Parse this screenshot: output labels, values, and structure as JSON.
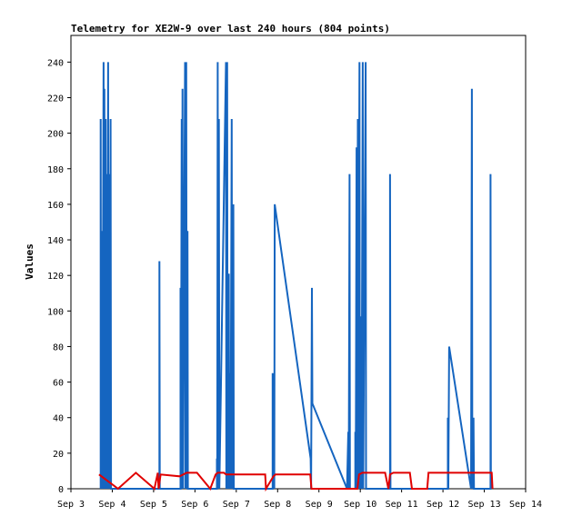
{
  "chart_data": {
    "type": "line",
    "title": "Telemetry for XE2W-9 over last 240 hours (804 points)",
    "xlabel": "",
    "ylabel": "Values",
    "ylim": [
      0,
      255
    ],
    "x_ticks": [
      "Sep 3",
      "Sep 4",
      "Sep 5",
      "Sep 6",
      "Sep 7",
      "Sep 8",
      "Sep 9",
      "Sep 10",
      "Sep 11",
      "Sep 12",
      "Sep 13",
      "Sep 14"
    ],
    "y_ticks": [
      0,
      20,
      40,
      60,
      80,
      100,
      120,
      140,
      160,
      180,
      200,
      220,
      240
    ],
    "grid": false,
    "colors": {
      "series_blue": "#1565c0",
      "series_red": "#e00000",
      "axis": "#000000"
    },
    "series": [
      {
        "name": "",
        "color": "#1565c0",
        "points": [
          [
            3.72,
            0
          ],
          [
            3.72,
            208
          ],
          [
            3.73,
            0
          ],
          [
            3.75,
            145
          ],
          [
            3.76,
            0
          ],
          [
            3.79,
            240
          ],
          [
            3.8,
            0
          ],
          [
            3.81,
            225
          ],
          [
            3.82,
            0
          ],
          [
            3.84,
            208
          ],
          [
            3.85,
            0
          ],
          [
            3.87,
            177
          ],
          [
            3.88,
            0
          ],
          [
            3.9,
            240
          ],
          [
            3.91,
            0
          ],
          [
            3.93,
            177
          ],
          [
            3.94,
            0
          ],
          [
            3.96,
            208
          ],
          [
            3.97,
            0
          ],
          [
            5.14,
            0
          ],
          [
            5.14,
            128
          ],
          [
            5.15,
            0
          ],
          [
            5.65,
            0
          ],
          [
            5.65,
            113
          ],
          [
            5.66,
            0
          ],
          [
            5.68,
            208
          ],
          [
            5.69,
            0
          ],
          [
            5.7,
            225
          ],
          [
            5.71,
            0
          ],
          [
            5.76,
            240
          ],
          [
            5.77,
            0
          ],
          [
            5.79,
            240
          ],
          [
            5.8,
            0
          ],
          [
            5.82,
            145
          ],
          [
            5.83,
            0
          ],
          [
            6.53,
            0
          ],
          [
            6.53,
            17
          ],
          [
            6.54,
            0
          ],
          [
            6.55,
            240
          ],
          [
            6.56,
            0
          ],
          [
            6.58,
            208
          ],
          [
            6.59,
            0
          ],
          [
            6.75,
            240
          ],
          [
            6.76,
            0
          ],
          [
            6.78,
            240
          ],
          [
            6.79,
            0
          ],
          [
            6.82,
            121
          ],
          [
            6.83,
            0
          ],
          [
            6.85,
            65
          ],
          [
            6.86,
            0
          ],
          [
            6.89,
            208
          ],
          [
            6.9,
            0
          ],
          [
            6.93,
            160
          ],
          [
            6.94,
            0
          ],
          [
            7.88,
            0
          ],
          [
            7.88,
            65
          ],
          [
            7.89,
            0
          ],
          [
            7.91,
            32
          ],
          [
            7.92,
            0
          ],
          [
            7.93,
            160
          ],
          [
            8.8,
            17
          ],
          [
            8.81,
            0
          ],
          [
            8.83,
            113
          ],
          [
            8.84,
            48
          ],
          [
            9.68,
            0
          ],
          [
            9.71,
            32
          ],
          [
            9.72,
            0
          ],
          [
            9.74,
            177
          ],
          [
            9.75,
            0
          ],
          [
            9.88,
            0
          ],
          [
            9.88,
            32
          ],
          [
            9.89,
            0
          ],
          [
            9.91,
            192
          ],
          [
            9.92,
            0
          ],
          [
            9.94,
            208
          ],
          [
            9.95,
            0
          ],
          [
            9.98,
            240
          ],
          [
            9.99,
            0
          ],
          [
            10.02,
            97
          ],
          [
            10.03,
            0
          ],
          [
            10.06,
            240
          ],
          [
            10.07,
            0
          ],
          [
            10.13,
            240
          ],
          [
            10.14,
            0
          ],
          [
            10.72,
            0
          ],
          [
            10.72,
            177
          ],
          [
            10.73,
            0
          ],
          [
            12.12,
            0
          ],
          [
            12.12,
            40
          ],
          [
            12.13,
            0
          ],
          [
            12.15,
            80
          ],
          [
            12.68,
            0
          ],
          [
            12.7,
            225
          ],
          [
            12.71,
            0
          ],
          [
            12.74,
            40
          ],
          [
            12.75,
            0
          ],
          [
            13.15,
            0
          ],
          [
            13.15,
            177
          ],
          [
            13.16,
            0
          ]
        ]
      },
      {
        "name": "",
        "color": "#e00000",
        "points": [
          [
            3.68,
            8
          ],
          [
            4.14,
            0
          ],
          [
            4.57,
            9
          ],
          [
            5.02,
            0
          ],
          [
            5.1,
            9
          ],
          [
            5.12,
            0
          ],
          [
            5.17,
            8
          ],
          [
            5.63,
            7
          ],
          [
            5.8,
            9
          ],
          [
            6.05,
            9
          ],
          [
            6.37,
            0
          ],
          [
            6.5,
            8
          ],
          [
            6.55,
            9
          ],
          [
            6.7,
            9
          ],
          [
            6.75,
            8
          ],
          [
            7.7,
            8
          ],
          [
            7.72,
            0
          ],
          [
            7.9,
            7
          ],
          [
            7.95,
            8
          ],
          [
            8.79,
            8
          ],
          [
            8.82,
            0
          ],
          [
            9.93,
            0
          ],
          [
            9.97,
            8
          ],
          [
            10.05,
            9
          ],
          [
            10.6,
            9
          ],
          [
            10.68,
            0
          ],
          [
            10.72,
            8
          ],
          [
            10.8,
            9
          ],
          [
            11.2,
            9
          ],
          [
            11.25,
            0
          ],
          [
            11.62,
            0
          ],
          [
            11.65,
            9
          ],
          [
            12.1,
            9
          ],
          [
            12.68,
            9
          ],
          [
            12.78,
            9
          ],
          [
            13.18,
            9
          ],
          [
            13.2,
            0
          ]
        ]
      }
    ]
  }
}
